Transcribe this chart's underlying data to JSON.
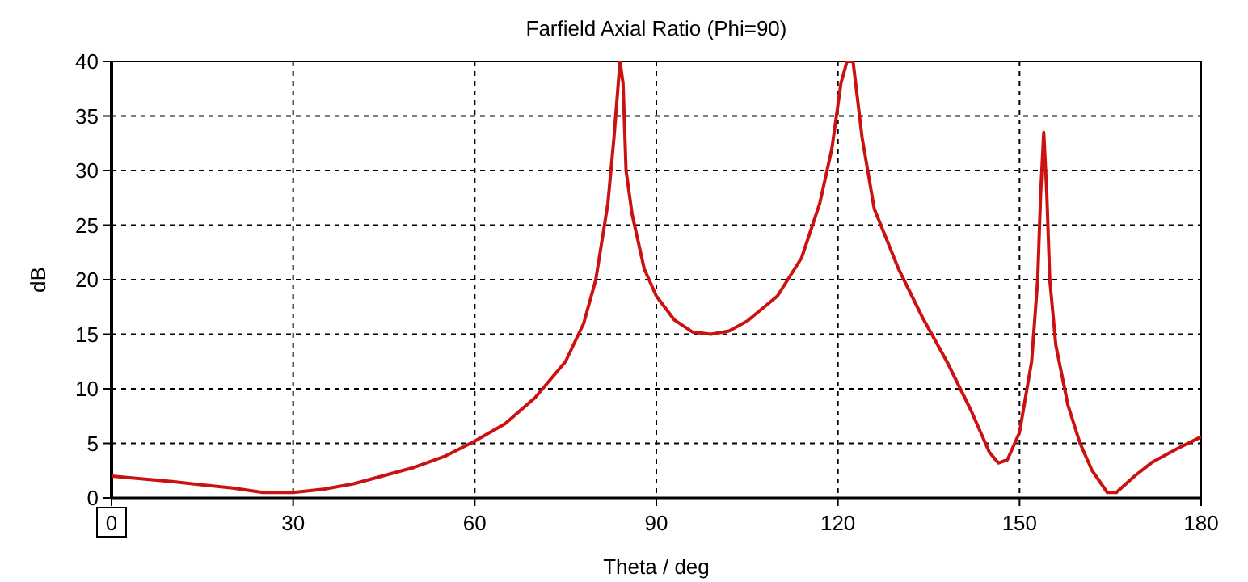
{
  "chart_data": {
    "type": "line",
    "title": "Farfield  Axial Ratio (Phi=90)",
    "xlabel": "Theta / deg",
    "ylabel": "dB",
    "xlim": [
      0,
      180
    ],
    "xticks": [
      0,
      30,
      60,
      90,
      120,
      150,
      180
    ],
    "ylim": [
      0,
      40
    ],
    "yticks": [
      0,
      5,
      10,
      15,
      20,
      25,
      30,
      35,
      40
    ],
    "grid": true,
    "series": [
      {
        "color": "#cc1111",
        "x": [
          0,
          10,
          20,
          25,
          30,
          35,
          40,
          50,
          55,
          60,
          65,
          70,
          75,
          78,
          80,
          82,
          83,
          84,
          84.5,
          85,
          86,
          88,
          90,
          93,
          96,
          99,
          102,
          105,
          110,
          114,
          117,
          119,
          120.5,
          121.5,
          122.5,
          124,
          126,
          130,
          134,
          138,
          142,
          145,
          146.5,
          148,
          150,
          152,
          153,
          153.5,
          154,
          154.5,
          155,
          156,
          158,
          160,
          162,
          164.5,
          166,
          169,
          172,
          176,
          180
        ],
        "values": [
          2,
          1.5,
          0.9,
          0.5,
          0.5,
          0.8,
          1.3,
          2.8,
          3.8,
          5.2,
          6.8,
          9.2,
          12.5,
          16,
          20,
          27,
          33,
          40,
          38,
          30,
          26,
          21,
          18.5,
          16.3,
          15.2,
          15,
          15.3,
          16.2,
          18.5,
          22,
          27,
          32,
          38,
          40,
          40,
          33,
          26.5,
          21,
          16.5,
          12.5,
          8,
          4.2,
          3.2,
          3.5,
          6,
          12.5,
          20,
          28,
          33.5,
          28,
          20,
          14,
          8.5,
          5,
          2.5,
          0.5,
          0.5,
          2,
          3.3,
          4.5,
          5.6
        ]
      }
    ]
  }
}
